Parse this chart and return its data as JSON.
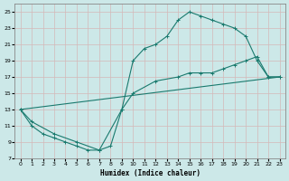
{
  "xlabel": "Humidex (Indice chaleur)",
  "bg_color": "#cce8e8",
  "grid_color": "#d9ecec",
  "line_color": "#1a7a6e",
  "xlim": [
    -0.5,
    23.5
  ],
  "ylim": [
    7,
    26
  ],
  "xticks": [
    0,
    1,
    2,
    3,
    4,
    5,
    6,
    7,
    8,
    9,
    10,
    11,
    12,
    13,
    14,
    15,
    16,
    17,
    18,
    19,
    20,
    21,
    22,
    23
  ],
  "yticks": [
    7,
    9,
    11,
    13,
    15,
    17,
    19,
    21,
    23,
    25
  ],
  "curve1_x": [
    0,
    1,
    2,
    3,
    4,
    5,
    6,
    7,
    8,
    9,
    10,
    11,
    12,
    13,
    14,
    15,
    16,
    17,
    18,
    19,
    20,
    21,
    22,
    23
  ],
  "curve1_y": [
    13,
    11,
    10,
    9.5,
    9,
    8.5,
    8,
    8,
    8.5,
    13,
    19,
    20.5,
    21,
    22,
    24,
    25,
    24.5,
    24,
    23.5,
    23,
    22,
    19,
    17,
    17
  ],
  "curve2_x": [
    0,
    1,
    3,
    5,
    7,
    9,
    10,
    12,
    14,
    15,
    16,
    17,
    18,
    19,
    20,
    21,
    22,
    23
  ],
  "curve2_y": [
    13,
    11.5,
    10,
    9,
    8,
    13,
    15,
    16.5,
    17,
    17.5,
    17.5,
    17.5,
    18,
    18.5,
    19,
    19.5,
    17,
    17
  ],
  "curve3_x": [
    0,
    23
  ],
  "curve3_y": [
    13,
    17
  ]
}
